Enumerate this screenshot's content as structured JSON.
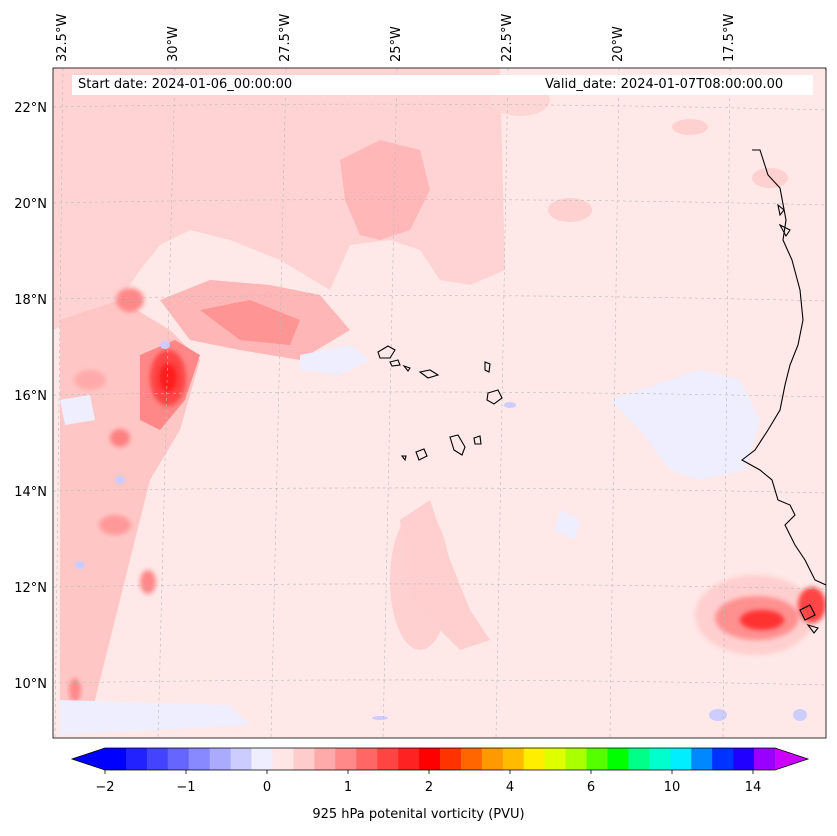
{
  "header": {
    "start_date": "Start date: 2024-01-06_00:00:00",
    "valid_date": "Valid_date: 2024-01-07T08:00:00.00"
  },
  "map": {
    "lon_labels": [
      "32.5°W",
      "30°W",
      "27.5°W",
      "25°W",
      "22.5°W",
      "20°W",
      "17.5°W"
    ],
    "lat_labels": [
      "22°N",
      "20°N",
      "18°N",
      "16°N",
      "14°N",
      "12°N",
      "10°N"
    ],
    "land_outline_color": "#000000",
    "gridlines": true
  },
  "colorbar": {
    "title": "925 hPa potenital vorticity (PVU)",
    "tick_labels": [
      "−2",
      "−1",
      "0",
      "1",
      "2",
      "4",
      "6",
      "10",
      "14"
    ],
    "colors": [
      "#0000ff",
      "#2222ff",
      "#4444ff",
      "#6666ff",
      "#8888ff",
      "#aaaaff",
      "#ccccff",
      "#eeeeff",
      "#ffe6e6",
      "#ffcccc",
      "#ffaaaa",
      "#ff8888",
      "#ff6666",
      "#ff4444",
      "#ff2222",
      "#ff0000",
      "#ff3300",
      "#ff6600",
      "#ff9900",
      "#ffbb00",
      "#ffee00",
      "#ddff00",
      "#aaff00",
      "#55ff00",
      "#00ff00",
      "#00ff88",
      "#00ffcc",
      "#00eeff",
      "#0088ff",
      "#0033ff",
      "#2200ff",
      "#9900ff"
    ],
    "under_color": "#0000ff",
    "over_color": "#cc00ff"
  }
}
